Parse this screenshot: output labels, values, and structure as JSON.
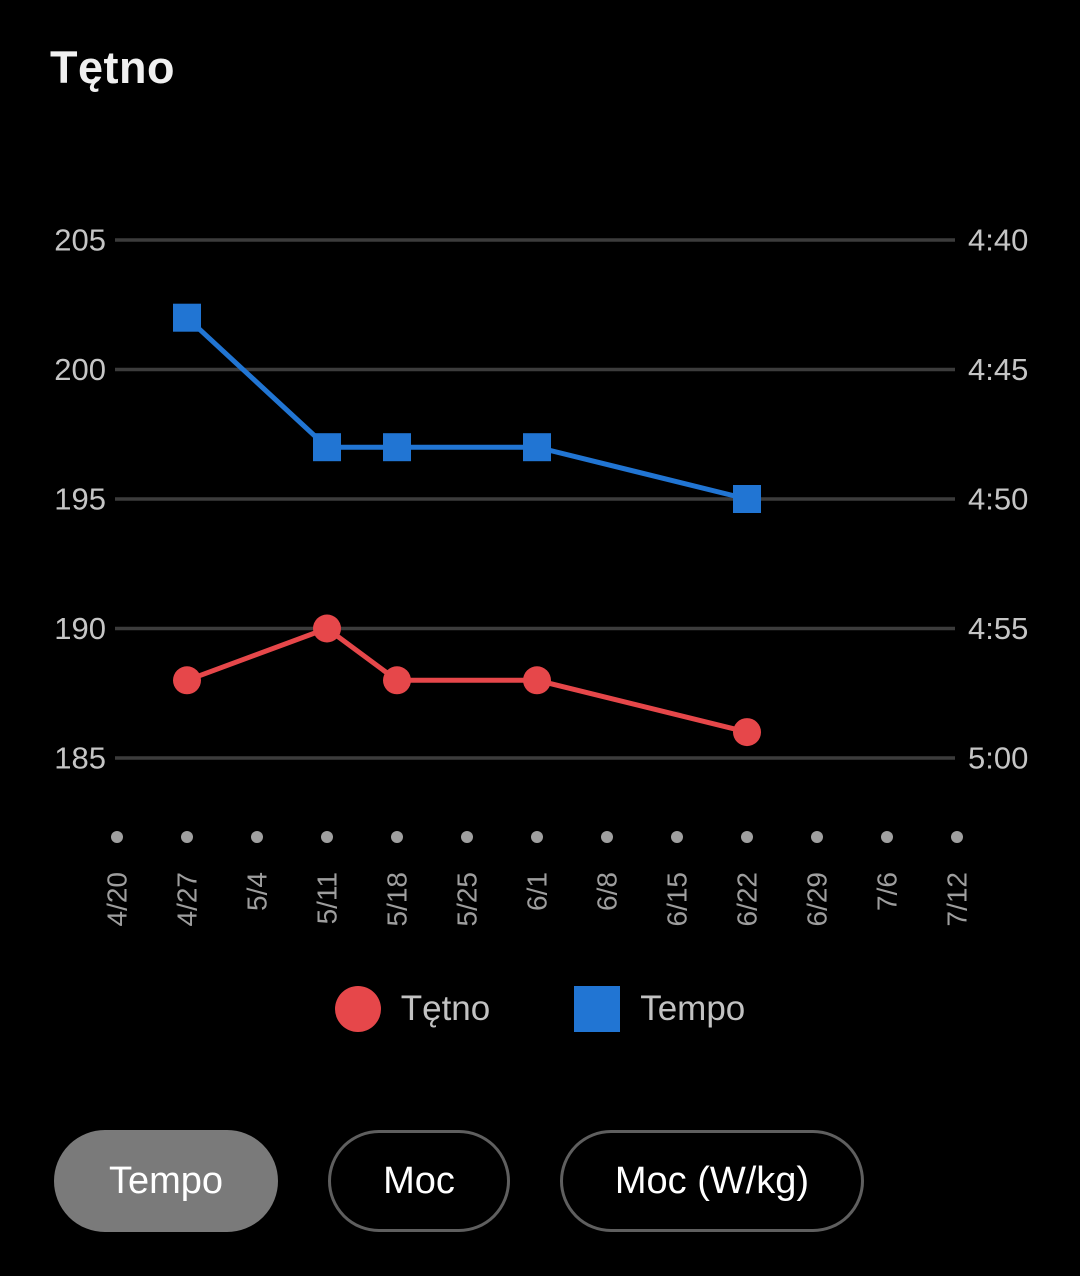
{
  "header": {
    "title": "Tętno"
  },
  "chart_data": {
    "type": "line",
    "title": "Tętno",
    "x_categories": [
      "4/20",
      "4/27",
      "5/4",
      "5/11",
      "5/18",
      "5/25",
      "6/1",
      "6/8",
      "6/15",
      "6/22",
      "6/29",
      "7/6",
      "7/12"
    ],
    "left_axis": {
      "ticks": [
        205,
        200,
        195,
        190,
        185
      ],
      "max": 205,
      "min": 185
    },
    "right_axis": {
      "ticks": [
        "4:40",
        "4:45",
        "4:50",
        "4:55",
        "5:00"
      ]
    },
    "series": [
      {
        "name": "Tętno",
        "color": "#e6474a",
        "marker": "circle",
        "axis": "left",
        "points": [
          {
            "category": "4/27",
            "value": 188
          },
          {
            "category": "5/11",
            "value": 190
          },
          {
            "category": "5/18",
            "value": 188
          },
          {
            "category": "6/1",
            "value": 188
          },
          {
            "category": "6/22",
            "value": 186
          }
        ]
      },
      {
        "name": "Tempo",
        "color": "#2175d3",
        "marker": "square",
        "axis": "right",
        "points": [
          {
            "category": "4/27",
            "pace": "4:43",
            "value": 202
          },
          {
            "category": "5/11",
            "pace": "4:48",
            "value": 197
          },
          {
            "category": "5/18",
            "pace": "4:48",
            "value": 197
          },
          {
            "category": "6/1",
            "pace": "4:48",
            "value": 197
          },
          {
            "category": "6/22",
            "pace": "4:50",
            "value": 195
          }
        ]
      }
    ],
    "legend": [
      {
        "label": "Tętno",
        "color": "#e6474a",
        "shape": "circle"
      },
      {
        "label": "Tempo",
        "color": "#2175d3",
        "shape": "square"
      }
    ],
    "style": {
      "background": "#000000",
      "grid_color": "#3c3c3c",
      "axis_label_color": "#c5c5c5",
      "x_label_color": "#9e9e9e",
      "dot_color": "#a0a0a0"
    },
    "layout": {
      "grid": "horizontal-only",
      "legend_position": "bottom",
      "x_labels_rotated": true
    }
  },
  "controls": {
    "buttons": [
      {
        "label": "Tempo",
        "selected": true
      },
      {
        "label": "Moc",
        "selected": false
      },
      {
        "label": "Moc (W/kg)",
        "selected": false
      }
    ]
  }
}
